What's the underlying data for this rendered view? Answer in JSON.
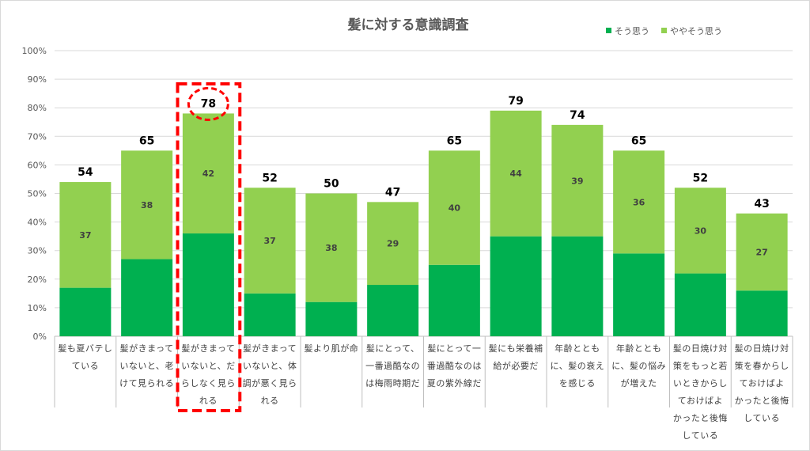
{
  "chart_data": {
    "type": "bar",
    "stacked": true,
    "title": "髪に対する意識調査",
    "xlabel": "",
    "ylabel": "",
    "ylim": [
      0,
      100
    ],
    "yticks": [
      "0%",
      "10%",
      "20%",
      "30%",
      "40%",
      "50%",
      "60%",
      "70%",
      "80%",
      "90%",
      "100%"
    ],
    "grid": true,
    "legend_position": "top-right",
    "categories": [
      [
        "髪も夏バテし",
        "ている"
      ],
      [
        "髪がきまって",
        "いないと、老",
        "けて見られる"
      ],
      [
        "髪がきまって",
        "いないと、だ",
        "らしなく見ら",
        "れる"
      ],
      [
        "髪がきまって",
        "いないと、体",
        "調が悪く見ら",
        "れる"
      ],
      [
        "髪より肌が命"
      ],
      [
        "髪にとって、",
        "一番過酷なの",
        "は梅雨時期だ"
      ],
      [
        "髪にとって一",
        "番過酷なのは",
        "夏の紫外線だ"
      ],
      [
        "髪にも栄養補",
        "給が必要だ"
      ],
      [
        "年齢ととも",
        "に、髪の衰え",
        "を感じる"
      ],
      [
        "年齢ととも",
        "に、髪の悩み",
        "が増えた"
      ],
      [
        "髪の日焼け対",
        "策をもっと若",
        "いときからし",
        "ておけばよ",
        "かったと後悔",
        "している"
      ],
      [
        "髪の日焼け対",
        "策を春からし",
        "ておけばよ",
        "かったと後悔",
        "している"
      ]
    ],
    "series": [
      {
        "name": "そう思う",
        "color": "#00b050",
        "values": [
          17,
          27,
          36,
          15,
          12,
          18,
          25,
          35,
          35,
          29,
          22,
          16
        ]
      },
      {
        "name": "ややそう思う",
        "color": "#92d050",
        "values": [
          37,
          38,
          42,
          37,
          38,
          29,
          40,
          44,
          39,
          36,
          30,
          27
        ]
      }
    ],
    "totals": [
      54,
      65,
      78,
      52,
      50,
      47,
      65,
      79,
      74,
      65,
      52,
      43
    ],
    "highlight_index": 2,
    "highlight_color": "#ff0000"
  }
}
